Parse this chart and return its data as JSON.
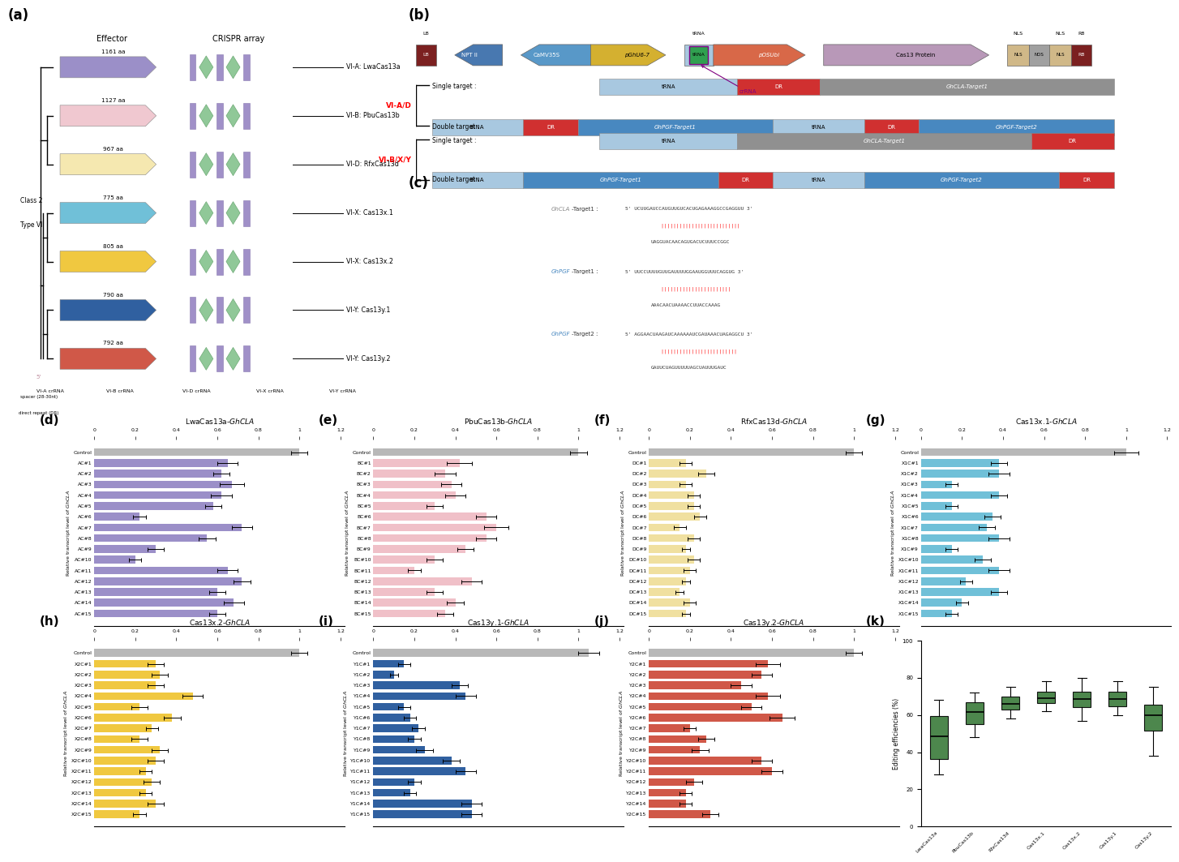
{
  "orthologs": [
    {
      "name": "VI-A: LwaCas13a",
      "aa": "1161 aa",
      "color": "#9B8FC8"
    },
    {
      "name": "VI-B: PbuCas13b",
      "aa": "1127 aa",
      "color": "#F0C8D0"
    },
    {
      "name": "VI-D: RfxCas13d",
      "aa": "967 aa",
      "color": "#F5E8B0"
    },
    {
      "name": "VI-X: Cas13x.1",
      "aa": "775 aa",
      "color": "#70C0D8"
    },
    {
      "name": "VI-X: Cas13x.2",
      "aa": "805 aa",
      "color": "#F0C840"
    },
    {
      "name": "VI-Y: Cas13y.1",
      "aa": "790 aa",
      "color": "#3060A0"
    },
    {
      "name": "VI-Y: Cas13y.2",
      "aa": "792 aa",
      "color": "#D05848"
    }
  ],
  "bar_d": {
    "title_plain": "LwaCas13a-",
    "title_italic": "GhCLA",
    "color": "#9B8FC8",
    "labels": [
      "Control",
      "AC#1",
      "AC#2",
      "AC#3",
      "AC#4",
      "AC#5",
      "AC#6",
      "AC#7",
      "AC#8",
      "AC#9",
      "AC#10",
      "AC#11",
      "AC#12",
      "AC#13",
      "AC#14",
      "AC#15"
    ],
    "values": [
      1.0,
      0.65,
      0.62,
      0.67,
      0.62,
      0.58,
      0.22,
      0.72,
      0.55,
      0.3,
      0.2,
      0.65,
      0.72,
      0.6,
      0.68,
      0.6
    ],
    "errors": [
      0.04,
      0.05,
      0.04,
      0.06,
      0.05,
      0.04,
      0.03,
      0.05,
      0.04,
      0.04,
      0.03,
      0.05,
      0.04,
      0.04,
      0.05,
      0.04
    ]
  },
  "bar_e": {
    "title_plain": "PbuCas13b-",
    "title_italic": "GhCLA",
    "color": "#F0C0C8",
    "labels": [
      "Control",
      "BC#1",
      "BC#2",
      "BC#3",
      "BC#4",
      "BC#5",
      "BC#6",
      "BC#7",
      "BC#8",
      "BC#9",
      "BC#10",
      "BC#11",
      "BC#12",
      "BC#13",
      "BC#14",
      "BC#15"
    ],
    "values": [
      1.0,
      0.42,
      0.35,
      0.38,
      0.4,
      0.3,
      0.55,
      0.6,
      0.55,
      0.45,
      0.3,
      0.2,
      0.48,
      0.3,
      0.4,
      0.35
    ],
    "errors": [
      0.04,
      0.06,
      0.05,
      0.05,
      0.05,
      0.04,
      0.05,
      0.06,
      0.05,
      0.04,
      0.04,
      0.03,
      0.05,
      0.04,
      0.04,
      0.04
    ]
  },
  "bar_f": {
    "title_plain": "RfxCas13d-",
    "title_italic": "GhCLA",
    "color": "#F0E0A0",
    "labels": [
      "Control",
      "DC#1",
      "DC#2",
      "DC#3",
      "DC#4",
      "DC#5",
      "DC#6",
      "DC#7",
      "DC#8",
      "DC#9",
      "DC#10",
      "DC#11",
      "DC#12",
      "DC#13",
      "DC#14",
      "DC#15"
    ],
    "values": [
      1.0,
      0.18,
      0.28,
      0.18,
      0.22,
      0.22,
      0.25,
      0.15,
      0.22,
      0.18,
      0.22,
      0.2,
      0.18,
      0.15,
      0.2,
      0.18
    ],
    "errors": [
      0.04,
      0.03,
      0.04,
      0.03,
      0.03,
      0.03,
      0.03,
      0.03,
      0.03,
      0.02,
      0.03,
      0.03,
      0.02,
      0.02,
      0.03,
      0.02
    ]
  },
  "bar_g": {
    "title_plain": "Cas13x.1-",
    "title_italic": "GhCLA",
    "color": "#70C0D8",
    "labels": [
      "Control",
      "X1C#1",
      "X1C#2",
      "X1C#3",
      "X1C#4",
      "X1C#5",
      "X1C#6",
      "X1C#7",
      "X1C#8",
      "X1C#9",
      "X1C#10",
      "X1C#11",
      "X1C#12",
      "X1C#13",
      "X1C#14",
      "X1C#15"
    ],
    "values": [
      1.0,
      0.38,
      0.38,
      0.15,
      0.38,
      0.15,
      0.35,
      0.32,
      0.38,
      0.15,
      0.3,
      0.38,
      0.22,
      0.38,
      0.2,
      0.15
    ],
    "errors": [
      0.06,
      0.04,
      0.05,
      0.03,
      0.04,
      0.03,
      0.04,
      0.04,
      0.05,
      0.03,
      0.04,
      0.05,
      0.03,
      0.04,
      0.03,
      0.03
    ]
  },
  "bar_h": {
    "title_plain": "Cas13x.2-",
    "title_italic": "GhCLA",
    "color": "#F0C840",
    "labels": [
      "Control",
      "X2C#1",
      "X2C#2",
      "X2C#3",
      "X2C#4",
      "X2C#5",
      "X2C#6",
      "X2C#7",
      "X2C#8",
      "X2C#9",
      "X2C#10",
      "X2C#11",
      "X2C#12",
      "X2C#13",
      "X2C#14",
      "X2C#15"
    ],
    "values": [
      1.0,
      0.3,
      0.32,
      0.3,
      0.48,
      0.22,
      0.38,
      0.28,
      0.22,
      0.32,
      0.3,
      0.25,
      0.28,
      0.25,
      0.3,
      0.22
    ],
    "errors": [
      0.04,
      0.04,
      0.04,
      0.04,
      0.05,
      0.04,
      0.04,
      0.03,
      0.04,
      0.04,
      0.04,
      0.03,
      0.04,
      0.03,
      0.04,
      0.03
    ]
  },
  "bar_i": {
    "title_plain": "Cas13y.1-",
    "title_italic": "GhCLA",
    "color": "#3060A0",
    "labels": [
      "Control",
      "Y1C#1",
      "Y1C#2",
      "Y1C#3",
      "Y1C#4",
      "Y1C#5",
      "Y1C#6",
      "Y1C#7",
      "Y1C#8",
      "Y1C#9",
      "Y1C#10",
      "Y1C#11",
      "Y1C#12",
      "Y1C#13",
      "Y1C#14",
      "Y1C#15"
    ],
    "values": [
      1.05,
      0.15,
      0.1,
      0.42,
      0.45,
      0.15,
      0.18,
      0.22,
      0.2,
      0.25,
      0.38,
      0.45,
      0.2,
      0.18,
      0.48,
      0.48
    ],
    "errors": [
      0.05,
      0.03,
      0.02,
      0.04,
      0.05,
      0.03,
      0.03,
      0.03,
      0.03,
      0.04,
      0.04,
      0.05,
      0.03,
      0.03,
      0.05,
      0.05
    ]
  },
  "bar_j": {
    "title_plain": "Cas13y.2-",
    "title_italic": "GhCLA",
    "color": "#D05848",
    "labels": [
      "Control",
      "Y2C#1",
      "Y2C#2",
      "Y2C#3",
      "Y2C#4",
      "Y2C#5",
      "Y2C#6",
      "Y2C#7",
      "Y2C#8",
      "Y2C#9",
      "Y2C#10",
      "Y2C#11",
      "Y2C#12",
      "Y2C#13",
      "Y2C#14",
      "Y2C#15"
    ],
    "values": [
      1.0,
      0.58,
      0.55,
      0.45,
      0.58,
      0.5,
      0.65,
      0.2,
      0.28,
      0.25,
      0.55,
      0.6,
      0.22,
      0.18,
      0.18,
      0.3
    ],
    "errors": [
      0.04,
      0.06,
      0.05,
      0.05,
      0.06,
      0.05,
      0.06,
      0.03,
      0.04,
      0.04,
      0.05,
      0.05,
      0.04,
      0.03,
      0.03,
      0.04
    ]
  },
  "box_categories": [
    "LwaCas13a",
    "PbuCas13b",
    "RfxCas13d",
    "Cas13x.1",
    "Cas13x.2",
    "Cas13y.1",
    "Cas13y.2"
  ],
  "box_data": [
    [
      28,
      32,
      38,
      45,
      52,
      58,
      63,
      68
    ],
    [
      48,
      52,
      56,
      60,
      63,
      66,
      69,
      72
    ],
    [
      58,
      62,
      63,
      65,
      67,
      69,
      72,
      75
    ],
    [
      62,
      65,
      67,
      68,
      70,
      72,
      75,
      78
    ],
    [
      57,
      62,
      65,
      67,
      70,
      72,
      75,
      80
    ],
    [
      60,
      63,
      65,
      67,
      70,
      72,
      74,
      78
    ],
    [
      38,
      48,
      53,
      58,
      62,
      65,
      68,
      75
    ]
  ],
  "box_color": "#3A7A3A"
}
